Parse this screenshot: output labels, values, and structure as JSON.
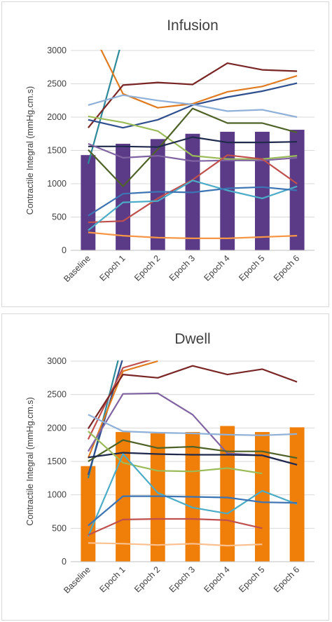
{
  "chart_data": [
    {
      "type": "bar+line",
      "title": "Infusion",
      "ylabel": "Contractile Integral (mmHg.cm.s)",
      "xlabel": "",
      "ylim": [
        0,
        3000
      ],
      "ytick_step": 500,
      "categories": [
        "Baseline",
        "Epoch 1",
        "Epoch 2",
        "Epoch 3",
        "Epoch 4",
        "Epoch 5",
        "Epoch 6"
      ],
      "bar_color": "#5b3b87",
      "bars": [
        1430,
        1600,
        1670,
        1750,
        1780,
        1780,
        1810
      ],
      "grid": true,
      "legend": "none",
      "lines": [
        {
          "color": "#2e8a9a",
          "values": [
            1300,
            3200
          ]
        },
        {
          "color": "#e07b20",
          "values": [
            3400,
            2350,
            2140,
            2200,
            2380,
            2460,
            2620
          ]
        },
        {
          "color": "#7a2626",
          "values": [
            1840,
            2480,
            2520,
            2490,
            2810,
            2710,
            2690
          ]
        },
        {
          "color": "#2f4f8e",
          "values": [
            1960,
            1840,
            1960,
            2180,
            2300,
            2390,
            2510
          ]
        },
        {
          "color": "#8fb0d8",
          "values": [
            2180,
            2330,
            2250,
            2190,
            2090,
            2110,
            2000
          ]
        },
        {
          "color": "#9bbb59",
          "values": [
            2010,
            1920,
            1790,
            1420,
            1370,
            1370,
            1420
          ]
        },
        {
          "color": "#4f6228",
          "values": [
            1510,
            960,
            1520,
            2130,
            1910,
            1910,
            1770
          ]
        },
        {
          "color": "#1f2a4c",
          "values": [
            1560,
            1560,
            1550,
            1700,
            1620,
            1620,
            1630
          ]
        },
        {
          "color": "#8064a2",
          "values": [
            1600,
            1390,
            1420,
            1340,
            1350,
            1350,
            1390
          ]
        },
        {
          "color": "#c0504d",
          "values": [
            420,
            440,
            780,
            1060,
            1430,
            1370,
            1000
          ]
        },
        {
          "color": "#4aacc6",
          "values": [
            300,
            720,
            740,
            1050,
            900,
            780,
            960
          ]
        },
        {
          "color": "#3c74b4",
          "values": [
            520,
            850,
            880,
            870,
            930,
            950,
            900
          ]
        },
        {
          "color": "#f79646",
          "values": [
            270,
            220,
            190,
            180,
            180,
            200,
            220
          ]
        }
      ]
    },
    {
      "type": "bar+line",
      "title": "Dwell",
      "ylabel": "Contractile Integral (mmHg.cm.s)",
      "xlabel": "",
      "ylim": [
        0,
        3000
      ],
      "ytick_step": 500,
      "categories": [
        "Baseline",
        "Epoch 1",
        "Epoch 2",
        "Epoch 3",
        "Epoch 4",
        "Epoch 5",
        "Epoch 6"
      ],
      "bar_color": "#f07f09",
      "bars": [
        1430,
        1940,
        1920,
        1940,
        2030,
        1940,
        2010
      ],
      "grid": true,
      "legend": "none",
      "lines": [
        {
          "color": "#2e8a9a",
          "values": [
            1250,
            3300
          ]
        },
        {
          "color": "#2f4f8e",
          "values": [
            1300,
            3050
          ]
        },
        {
          "color": "#e07b20",
          "values": [
            1550,
            2850,
            3000
          ]
        },
        {
          "color": "#c0504d",
          "values": [
            1830,
            2900,
            3050
          ]
        },
        {
          "color": "#7a2626",
          "values": [
            1990,
            2800,
            2750,
            2930,
            2800,
            2880,
            2690
          ]
        },
        {
          "color": "#8064a2",
          "values": [
            1650,
            2510,
            2520,
            2200,
            1620,
            1590,
            1450
          ]
        },
        {
          "color": "#8fb0d8",
          "values": [
            2200,
            1950,
            1930,
            1920,
            1900,
            1890,
            1910
          ]
        },
        {
          "color": "#4f6228",
          "values": [
            1500,
            1820,
            1700,
            1720,
            1650,
            1650,
            1550
          ]
        },
        {
          "color": "#1f2a4c",
          "values": [
            1560,
            1630,
            1610,
            1600,
            1600,
            1590,
            1450
          ]
        },
        {
          "color": "#9bbb59",
          "values": [
            1950,
            1480,
            1360,
            1350,
            1400,
            1320
          ]
        },
        {
          "color": "#4aacc6",
          "values": [
            380,
            1610,
            1030,
            810,
            720,
            1060,
            860
          ]
        },
        {
          "color": "#3c74b4",
          "values": [
            540,
            980,
            980,
            970,
            960,
            890,
            880
          ]
        },
        {
          "color": "#c0504d",
          "values": [
            400,
            630,
            640,
            640,
            620,
            500
          ]
        },
        {
          "color": "#fac090",
          "values": [
            280,
            270,
            250,
            270,
            240,
            260
          ]
        }
      ]
    }
  ]
}
